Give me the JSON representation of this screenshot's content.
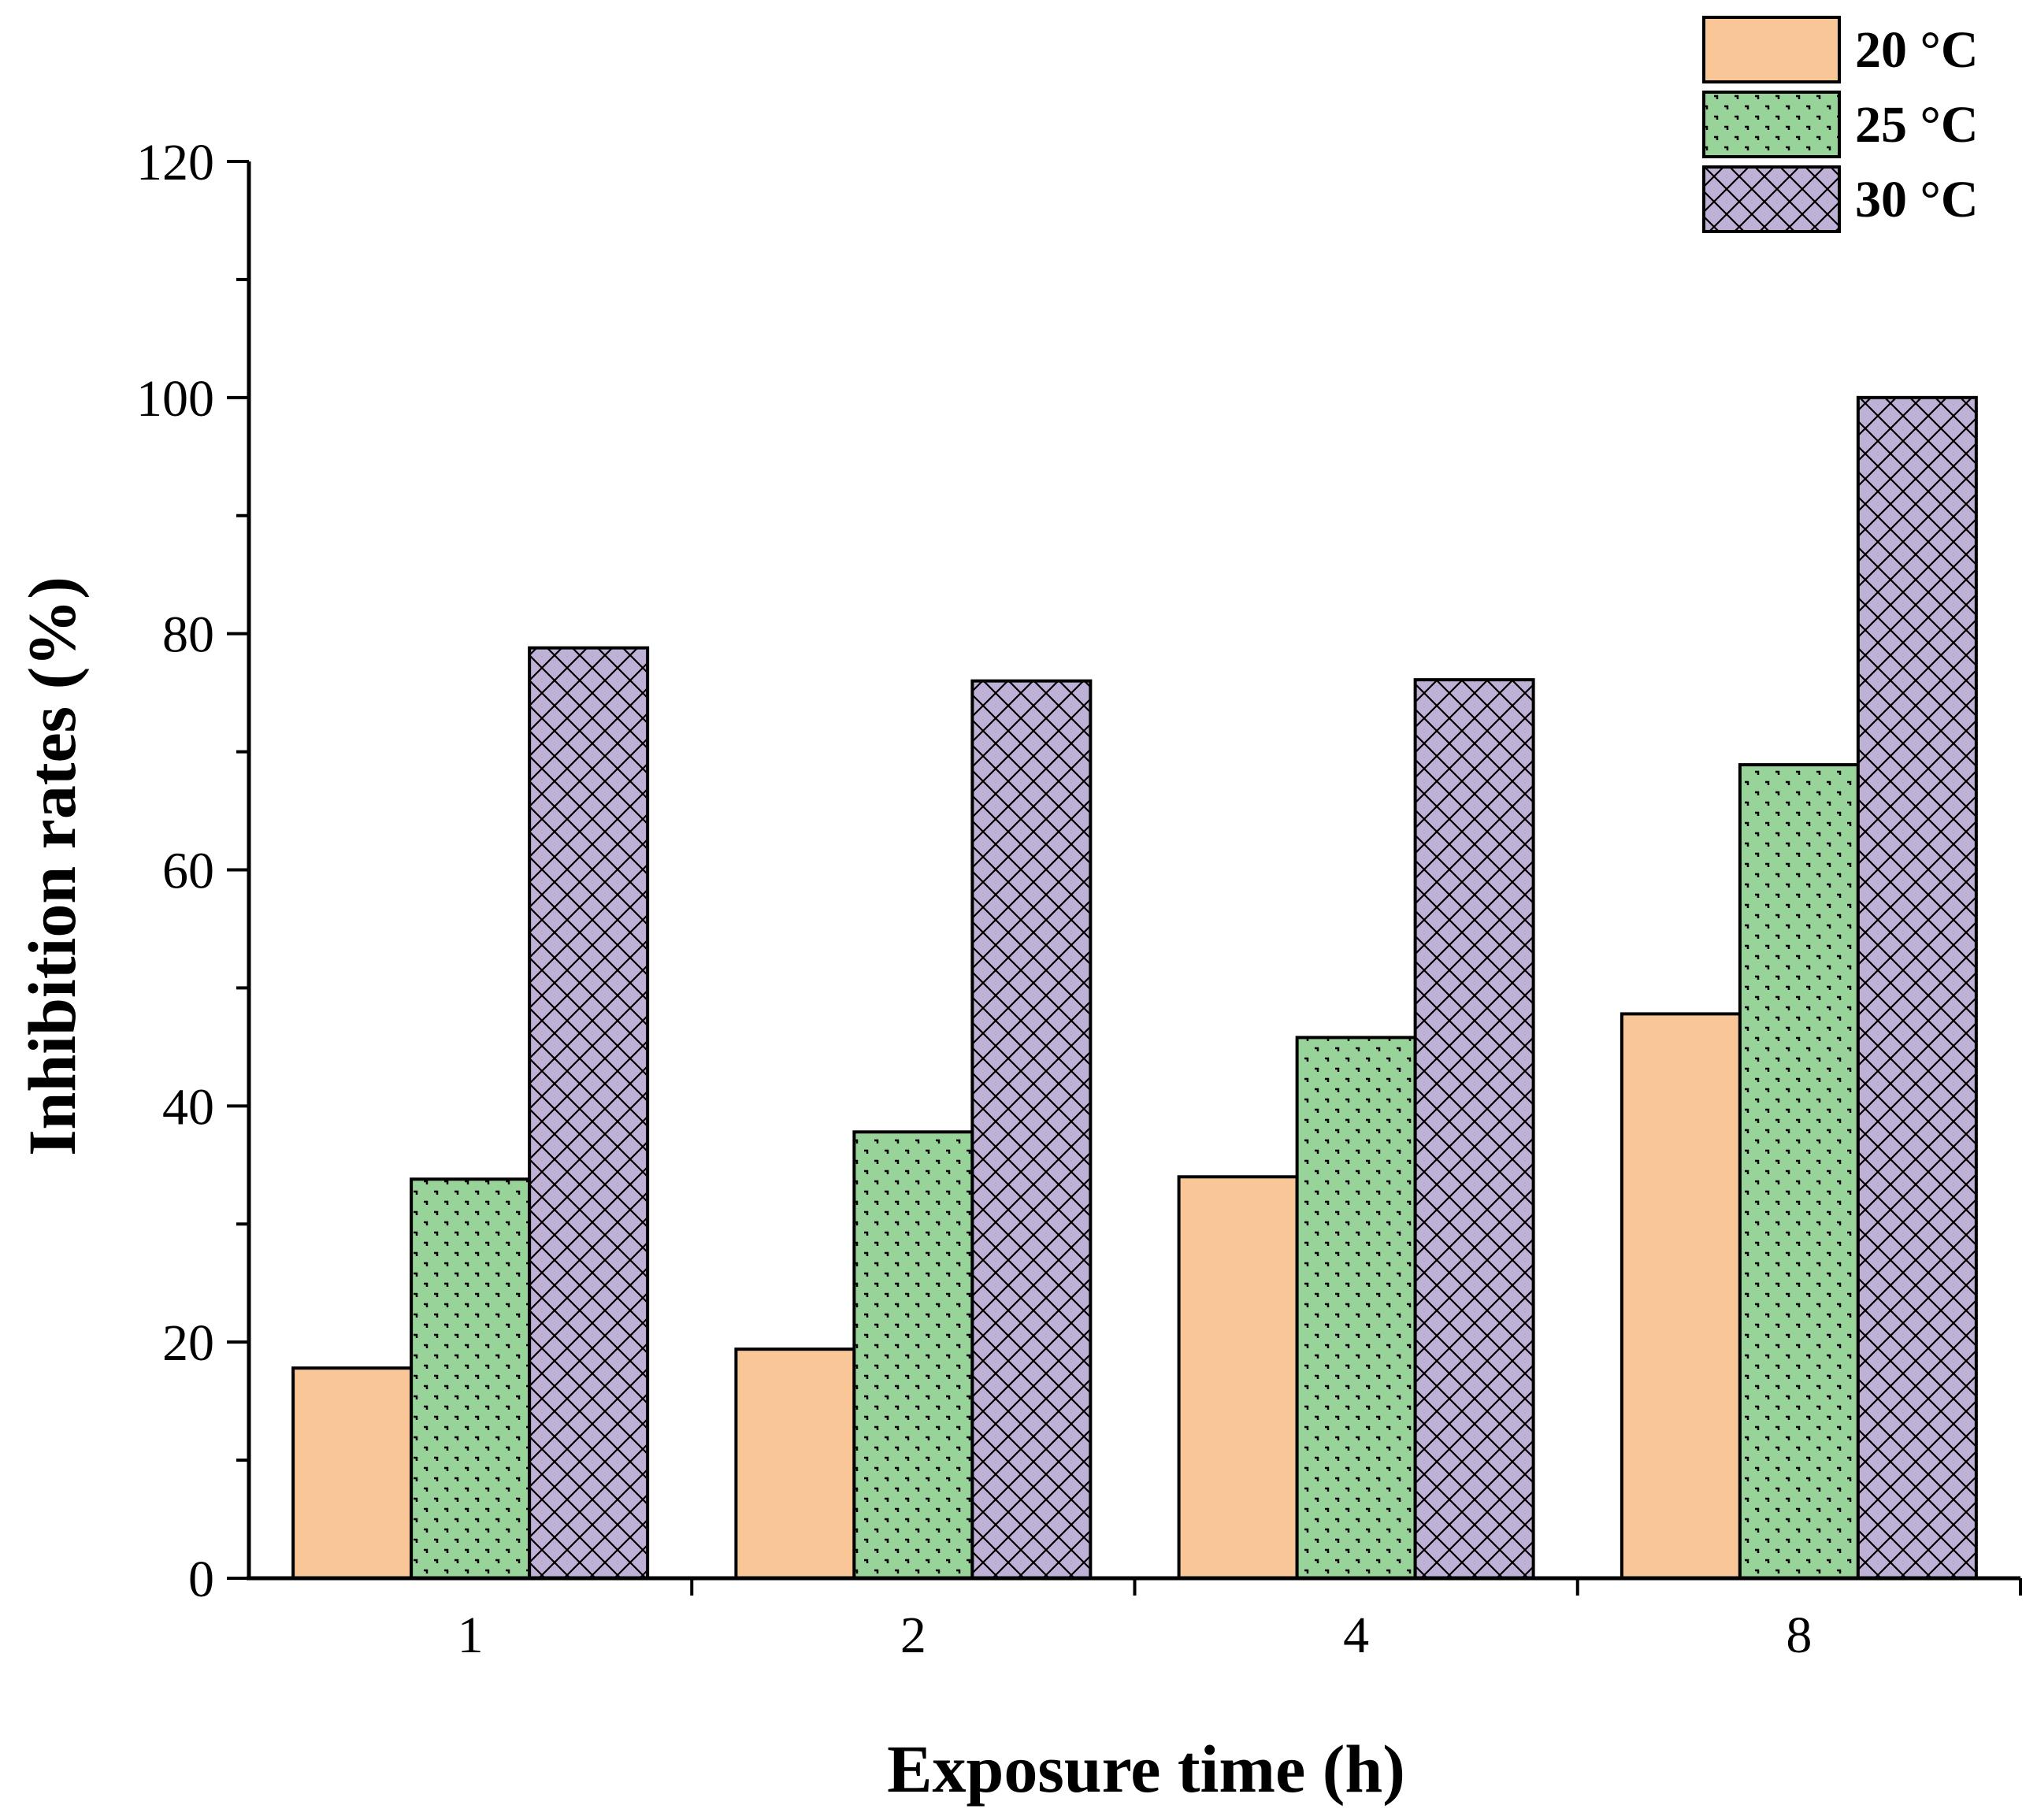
{
  "chart_data": {
    "type": "bar",
    "title": "",
    "xlabel": "Exposure time (h)",
    "ylabel": "Inhibition rates (%)",
    "categories": [
      "1",
      "2",
      "4",
      "8"
    ],
    "series": [
      {
        "name": "20 °C",
        "values": [
          17.8,
          19.4,
          34.0,
          47.8
        ],
        "color": "#F9C697",
        "pattern": "solid"
      },
      {
        "name": "25 °C",
        "values": [
          33.8,
          37.8,
          45.8,
          68.9
        ],
        "color": "#98D49A",
        "pattern": "dots"
      },
      {
        "name": "30 °C",
        "values": [
          78.8,
          76.0,
          76.1,
          100.0
        ],
        "color": "#BFB0D6",
        "pattern": "crosshatch"
      }
    ],
    "ylim": [
      0,
      120
    ],
    "yticks": [
      "0",
      "20",
      "40",
      "60",
      "80",
      "100",
      "120"
    ],
    "grid": false,
    "legend_position": "top-right"
  }
}
